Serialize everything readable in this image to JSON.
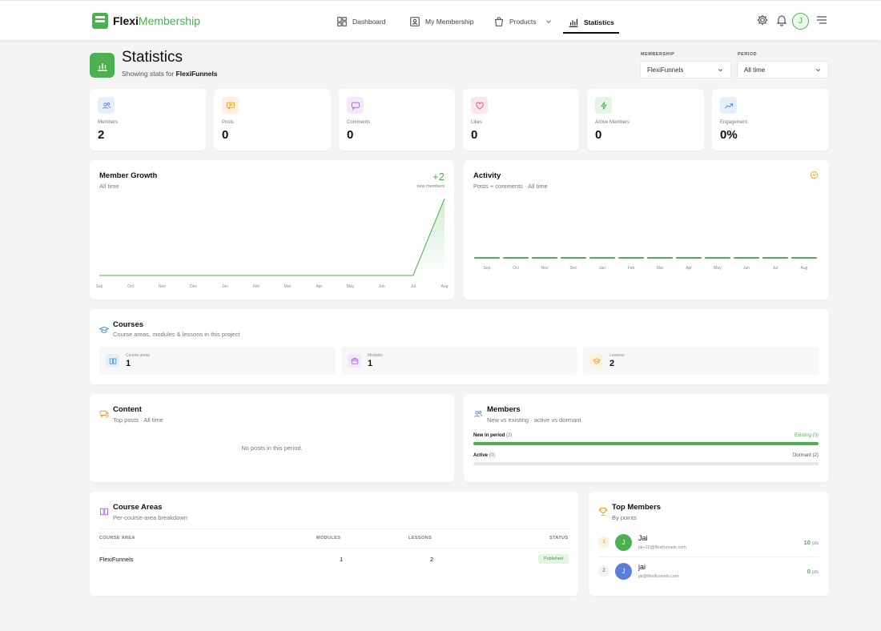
{
  "brand": {
    "part1": "Flexi",
    "part2": "Membership"
  },
  "nav": [
    {
      "label": "Dashboard",
      "icon": "dashboard-icon"
    },
    {
      "label": "My Membership",
      "icon": "membership-icon"
    },
    {
      "label": "Products",
      "icon": "bag-icon"
    },
    {
      "label": "Statistics",
      "icon": "chart-icon",
      "active": true
    }
  ],
  "user_initial": "J",
  "header": {
    "title": "Statistics",
    "subtitle_prefix": "Showing stats for",
    "subtitle_name": "FlexiFunnels"
  },
  "filters": {
    "membership_label": "MEMBERSHIP",
    "membership_value": "FlexiFunnels",
    "period_label": "PERIOD",
    "period_value": "All time"
  },
  "stats": [
    {
      "label": "Members",
      "value": "2",
      "color": "#6b8fd6"
    },
    {
      "label": "Posts",
      "value": "0",
      "color": "#f0a030"
    },
    {
      "label": "Comments",
      "value": "0",
      "color": "#a86fd6"
    },
    {
      "label": "Likes",
      "value": "0",
      "color": "#e05a7a"
    },
    {
      "label": "Active Members",
      "value": "0",
      "color": "#4caf50"
    },
    {
      "label": "Engagement",
      "value": "0%",
      "color": "#4a90d9"
    }
  ],
  "member_growth": {
    "title": "Member Growth",
    "subtitle": "All time",
    "delta": "+2",
    "delta_label": "new members"
  },
  "activity": {
    "title": "Activity",
    "subtitle": "Posts + comments · All time"
  },
  "chart_data": [
    {
      "type": "area",
      "title": "Member Growth",
      "categories": [
        "Sep",
        "Oct",
        "Nov",
        "Dec",
        "Jan",
        "Feb",
        "Mar",
        "Apr",
        "May",
        "Jun",
        "Jul",
        "Aug"
      ],
      "series": [
        {
          "values": [
            0,
            0,
            0,
            0,
            0,
            0,
            0,
            0,
            0,
            0,
            0,
            2
          ]
        }
      ],
      "ylim": [
        0,
        2
      ],
      "color": "#4caf50"
    },
    {
      "type": "bar",
      "title": "Activity",
      "categories": [
        "Sep",
        "Oct",
        "Nov",
        "Dec",
        "Jan",
        "Feb",
        "Mar",
        "Apr",
        "May",
        "Jun",
        "Jul",
        "Aug"
      ],
      "series": [
        {
          "values": [
            0,
            0,
            0,
            0,
            0,
            0,
            0,
            0,
            0,
            0,
            0,
            0
          ]
        }
      ],
      "color": "#4caf50"
    }
  ],
  "courses": {
    "title": "Courses",
    "subtitle": "Course areas, modules & lessons in this project",
    "tiles": [
      {
        "label": "Course areas",
        "value": "1",
        "color": "#4a90d9"
      },
      {
        "label": "Modules",
        "value": "1",
        "color": "#a86fd6"
      },
      {
        "label": "Lessons",
        "value": "2",
        "color": "#f0a030"
      }
    ]
  },
  "content": {
    "title": "Content",
    "subtitle": "Top posts · All time",
    "empty": "No posts in this period."
  },
  "members_panel": {
    "title": "Members",
    "subtitle": "New vs existing · active vs dormant",
    "new_label": "New in period",
    "new_count": "(2)",
    "existing_label": "Existing",
    "existing_count": "(0)",
    "new_fraction": 1.0,
    "active_label": "Active",
    "active_count": "(0)",
    "dormant_label": "Dormant",
    "dormant_count": "(2)",
    "active_fraction": 0.0
  },
  "course_areas": {
    "title": "Course Areas",
    "subtitle": "Per-course-area breakdown",
    "columns": [
      "COURSE AREA",
      "MODULES",
      "LESSONS",
      "STATUS"
    ],
    "rows": [
      {
        "name": "FlexiFunnels",
        "modules": "1",
        "lessons": "2",
        "status": "Published"
      }
    ]
  },
  "top_members": {
    "title": "Top Members",
    "subtitle": "By points",
    "pts_suffix": "pts",
    "list": [
      {
        "rank": "1",
        "initial": "J",
        "name": "Jai",
        "email": "jai+22@flexifunnels.com",
        "points": "10",
        "avatar_color": "#4caf50"
      },
      {
        "rank": "2",
        "initial": "J",
        "name": "jai",
        "email": "jai@flexifunnels.com",
        "points": "0",
        "avatar_color": "#5b7fd9"
      }
    ]
  }
}
